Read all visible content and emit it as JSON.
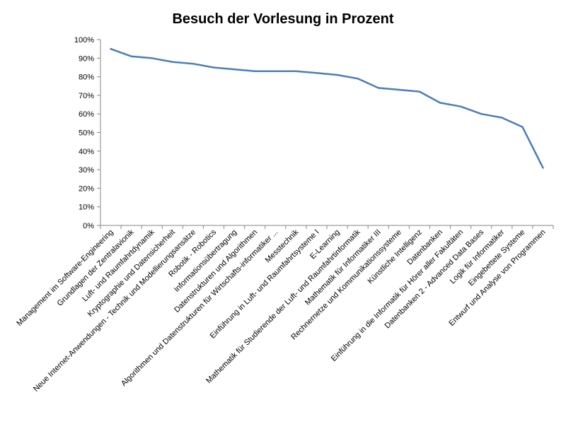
{
  "chart_data": {
    "type": "line",
    "title": "Besuch der Vorlesung in Prozent",
    "xlabel": "",
    "ylabel": "",
    "ylim": [
      0,
      100
    ],
    "yticks": [
      "0%",
      "10%",
      "20%",
      "30%",
      "40%",
      "50%",
      "60%",
      "70%",
      "80%",
      "90%",
      "100%"
    ],
    "grid": false,
    "legend": "none",
    "line_color": "#4a7ebb",
    "categories": [
      "Management im Software-Engineering",
      "Grundlagen der Zentralavionik",
      "Luft- und Raumfahrtdynamik",
      "Kryptographie und Datensicherheit",
      "Neue Internet-Anwendungen - Technik und Modellierungsansätze",
      "Robotik - Robotics",
      "Informationsübertragung",
      "Datenstrukturen und Algorithmen",
      "Algorithmen und Datenstrukturen für Wirtschafts-informatiker ...",
      "Messtechnik",
      "Einführung in Luft- und Raumfahrtsysteme  I",
      "E-Learning",
      "Mathematik für Studierende der Luft- und Raumfahrtinformatik",
      "Mathematik für Informatiker III",
      "Rechnernetze und Kommunikationssysteme",
      "Künstliche Intelligenz",
      "Datenbanken",
      "Einführung in die Informatik für Hörer aller Fakultäten",
      "Datenbanken 2 - Advanced Data Bases",
      "Logik für Informatiker",
      "Eingebettete Systeme",
      "Entwurf und Analyse von Programmen"
    ],
    "values": [
      95,
      91,
      90,
      88,
      87,
      85,
      84,
      83,
      83,
      83,
      82,
      81,
      79,
      74,
      73,
      72,
      66,
      64,
      60,
      58,
      53,
      31
    ]
  }
}
